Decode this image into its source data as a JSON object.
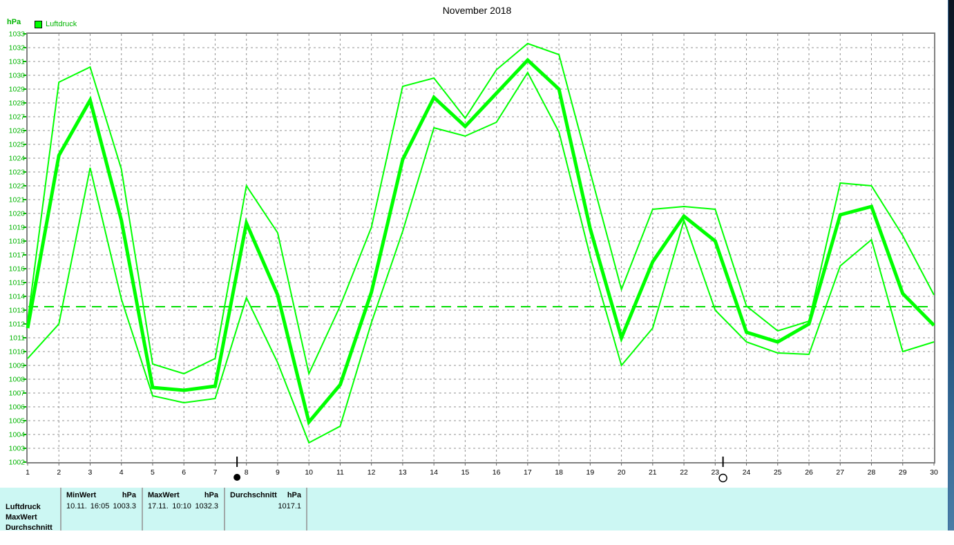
{
  "title": "November 2018",
  "y_axis": {
    "unit": "hPa",
    "min": 1002,
    "max": 1033,
    "tick_step": 1
  },
  "legend": {
    "label": "Luftdruck",
    "swatch_color": "#00ff00"
  },
  "colors": {
    "line_green": "#00ff00",
    "axis_label_green": "#00b400",
    "reference_green": "#00dd00",
    "grid_gray": "#909090",
    "axis_gray": "#808080",
    "text_black": "#000000",
    "table_background": "#ccf7f3",
    "table_separator": "#a0a8a8"
  },
  "chart_data": {
    "type": "line",
    "title": "November 2018",
    "xlabel": "",
    "ylabel": "hPa",
    "ylim": [
      1002,
      1033
    ],
    "grid": true,
    "legend_position": "top-left",
    "x": [
      1,
      2,
      3,
      4,
      5,
      6,
      7,
      8,
      9,
      10,
      11,
      12,
      13,
      14,
      15,
      16,
      17,
      18,
      19,
      20,
      21,
      22,
      23,
      24,
      25,
      26,
      27,
      28,
      29,
      30
    ],
    "series": [
      {
        "name": "max",
        "values": [
          1012.2,
          1029.5,
          1030.6,
          1023.2,
          1009.1,
          1008.4,
          1009.5,
          1022.0,
          1018.6,
          1008.4,
          1013.3,
          1019.0,
          1029.2,
          1029.8,
          1026.9,
          1030.4,
          1032.3,
          1031.5,
          1023.0,
          1014.5,
          1020.3,
          1020.5,
          1020.3,
          1013.3,
          1011.5,
          1012.2,
          1022.2,
          1022.0,
          1018.4,
          1014.1
        ]
      },
      {
        "name": "mean",
        "values": [
          1011.7,
          1024.2,
          1028.2,
          1019.5,
          1007.4,
          1007.2,
          1007.5,
          1019.3,
          1014.1,
          1004.9,
          1007.6,
          1014.3,
          1023.9,
          1028.4,
          1026.3,
          1028.7,
          1031.1,
          1029.0,
          1018.9,
          1011.0,
          1016.5,
          1019.8,
          1018.0,
          1011.4,
          1010.7,
          1012.0,
          1019.9,
          1020.5,
          1014.2,
          1011.9
        ]
      },
      {
        "name": "min",
        "values": [
          1009.5,
          1012.0,
          1023.3,
          1013.8,
          1006.8,
          1006.3,
          1006.6,
          1013.9,
          1009.2,
          1003.4,
          1004.6,
          1012.1,
          1018.7,
          1026.2,
          1025.6,
          1026.6,
          1030.2,
          1025.9,
          1016.9,
          1009.0,
          1011.7,
          1019.5,
          1013.0,
          1010.7,
          1009.9,
          1009.8,
          1016.2,
          1018.1,
          1010.0,
          1010.7
        ]
      }
    ],
    "reference_line": {
      "value": 1013.25
    },
    "moon_markers": [
      {
        "symbol": "new-moon",
        "day": 7.7
      },
      {
        "symbol": "full-moon",
        "day": 23.25
      }
    ]
  },
  "summary_table": {
    "row_labels": {
      "r1": "Luftdruck",
      "r2": "MaxWert",
      "r3": "Durchschnitt"
    },
    "min_col": {
      "header": "MinWert",
      "unit": "hPa",
      "date": "10.11.",
      "time": "16:05",
      "value": "1003.3"
    },
    "max_col": {
      "header": "MaxWert",
      "unit": "hPa",
      "date": "17.11.",
      "time": "10:10",
      "value": "1032.3"
    },
    "avg_col": {
      "header": "Durchschnitt",
      "unit": "hPa",
      "value": "1017.1"
    }
  }
}
